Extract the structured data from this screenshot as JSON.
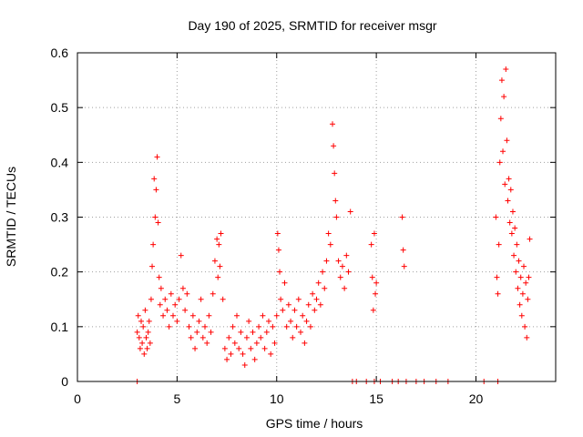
{
  "chart_data": {
    "type": "scatter",
    "title": "Day 190 of 2025, SRMTID for receiver msgr",
    "xlabel": "GPS time / hours",
    "ylabel": "SRMTID / TECUs",
    "xlim": [
      0,
      24
    ],
    "ylim": [
      0,
      0.6
    ],
    "xticks": [
      0,
      5,
      10,
      15,
      20
    ],
    "yticks": [
      0,
      0.1,
      0.2,
      0.3,
      0.4,
      0.5,
      0.6
    ],
    "xtick_labels": [
      "0",
      "5",
      "10",
      "15",
      "20"
    ],
    "ytick_labels": [
      "0",
      "0.1",
      "0.2",
      "0.3",
      "0.4",
      "0.5",
      "0.6"
    ],
    "grid": true,
    "marker": "+",
    "series": [
      {
        "name": "SRMTID",
        "color": "#ff0000",
        "points": [
          [
            3.0,
            0.09
          ],
          [
            3.05,
            0.12
          ],
          [
            3.1,
            0.08
          ],
          [
            3.15,
            0.06
          ],
          [
            3.2,
            0.11
          ],
          [
            3.25,
            0.07
          ],
          [
            3.3,
            0.1
          ],
          [
            3.35,
            0.05
          ],
          [
            3.4,
            0.13
          ],
          [
            3.45,
            0.08
          ],
          [
            3.5,
            0.06
          ],
          [
            3.55,
            0.09
          ],
          [
            3.6,
            0.11
          ],
          [
            3.65,
            0.07
          ],
          [
            3.7,
            0.15
          ],
          [
            3.75,
            0.21
          ],
          [
            3.8,
            0.25
          ],
          [
            3.85,
            0.37
          ],
          [
            3.9,
            0.3
          ],
          [
            3.95,
            0.35
          ],
          [
            4.0,
            0.41
          ],
          [
            4.05,
            0.29
          ],
          [
            4.1,
            0.19
          ],
          [
            4.15,
            0.14
          ],
          [
            4.2,
            0.17
          ],
          [
            4.3,
            0.12
          ],
          [
            4.4,
            0.15
          ],
          [
            4.5,
            0.13
          ],
          [
            4.6,
            0.1
          ],
          [
            4.7,
            0.16
          ],
          [
            4.8,
            0.12
          ],
          [
            4.9,
            0.14
          ],
          [
            5.0,
            0.11
          ],
          [
            5.1,
            0.15
          ],
          [
            5.2,
            0.23
          ],
          [
            5.3,
            0.17
          ],
          [
            5.4,
            0.13
          ],
          [
            5.5,
            0.16
          ],
          [
            5.6,
            0.1
          ],
          [
            5.7,
            0.08
          ],
          [
            5.8,
            0.12
          ],
          [
            5.9,
            0.06
          ],
          [
            6.0,
            0.09
          ],
          [
            6.1,
            0.11
          ],
          [
            6.2,
            0.15
          ],
          [
            6.3,
            0.08
          ],
          [
            6.4,
            0.1
          ],
          [
            6.5,
            0.07
          ],
          [
            6.6,
            0.12
          ],
          [
            6.7,
            0.09
          ],
          [
            6.8,
            0.16
          ],
          [
            6.9,
            0.22
          ],
          [
            7.0,
            0.26
          ],
          [
            7.05,
            0.19
          ],
          [
            7.1,
            0.25
          ],
          [
            7.15,
            0.21
          ],
          [
            7.2,
            0.27
          ],
          [
            7.3,
            0.15
          ],
          [
            7.4,
            0.06
          ],
          [
            7.5,
            0.04
          ],
          [
            7.6,
            0.08
          ],
          [
            7.7,
            0.05
          ],
          [
            7.8,
            0.1
          ],
          [
            7.9,
            0.07
          ],
          [
            8.0,
            0.12
          ],
          [
            8.1,
            0.06
          ],
          [
            8.2,
            0.09
          ],
          [
            8.3,
            0.05
          ],
          [
            8.4,
            0.03
          ],
          [
            8.5,
            0.08
          ],
          [
            8.6,
            0.11
          ],
          [
            8.7,
            0.06
          ],
          [
            8.8,
            0.09
          ],
          [
            8.9,
            0.04
          ],
          [
            9.0,
            0.07
          ],
          [
            9.1,
            0.1
          ],
          [
            9.2,
            0.08
          ],
          [
            9.3,
            0.12
          ],
          [
            9.4,
            0.06
          ],
          [
            9.5,
            0.09
          ],
          [
            9.6,
            0.11
          ],
          [
            9.7,
            0.05
          ],
          [
            9.8,
            0.1
          ],
          [
            9.9,
            0.07
          ],
          [
            10.0,
            0.12
          ],
          [
            10.05,
            0.27
          ],
          [
            10.1,
            0.24
          ],
          [
            10.15,
            0.2
          ],
          [
            10.2,
            0.15
          ],
          [
            10.3,
            0.13
          ],
          [
            10.4,
            0.18
          ],
          [
            10.5,
            0.1
          ],
          [
            10.6,
            0.14
          ],
          [
            10.7,
            0.11
          ],
          [
            10.8,
            0.08
          ],
          [
            10.9,
            0.13
          ],
          [
            11.0,
            0.1
          ],
          [
            11.1,
            0.15
          ],
          [
            11.2,
            0.09
          ],
          [
            11.3,
            0.12
          ],
          [
            11.4,
            0.07
          ],
          [
            11.5,
            0.11
          ],
          [
            11.6,
            0.14
          ],
          [
            11.7,
            0.1
          ],
          [
            11.8,
            0.16
          ],
          [
            11.9,
            0.13
          ],
          [
            12.0,
            0.15
          ],
          [
            12.1,
            0.18
          ],
          [
            12.2,
            0.14
          ],
          [
            12.3,
            0.2
          ],
          [
            12.4,
            0.17
          ],
          [
            12.5,
            0.22
          ],
          [
            12.6,
            0.27
          ],
          [
            12.7,
            0.25
          ],
          [
            12.8,
            0.47
          ],
          [
            12.85,
            0.43
          ],
          [
            12.9,
            0.38
          ],
          [
            12.95,
            0.33
          ],
          [
            13.0,
            0.3
          ],
          [
            13.1,
            0.22
          ],
          [
            13.2,
            0.19
          ],
          [
            13.3,
            0.21
          ],
          [
            13.4,
            0.17
          ],
          [
            13.5,
            0.23
          ],
          [
            13.6,
            0.2
          ],
          [
            13.7,
            0.31
          ],
          [
            14.75,
            0.25
          ],
          [
            14.8,
            0.19
          ],
          [
            14.85,
            0.13
          ],
          [
            14.9,
            0.27
          ],
          [
            14.95,
            0.16
          ],
          [
            15.0,
            0.18
          ],
          [
            16.3,
            0.3
          ],
          [
            16.35,
            0.24
          ],
          [
            16.4,
            0.21
          ],
          [
            21.0,
            0.3
          ],
          [
            21.05,
            0.19
          ],
          [
            21.1,
            0.16
          ],
          [
            21.15,
            0.25
          ],
          [
            21.2,
            0.4
          ],
          [
            21.25,
            0.48
          ],
          [
            21.3,
            0.55
          ],
          [
            21.35,
            0.42
          ],
          [
            21.4,
            0.52
          ],
          [
            21.45,
            0.36
          ],
          [
            21.5,
            0.57
          ],
          [
            21.55,
            0.44
          ],
          [
            21.6,
            0.33
          ],
          [
            21.65,
            0.37
          ],
          [
            21.7,
            0.29
          ],
          [
            21.75,
            0.35
          ],
          [
            21.8,
            0.27
          ],
          [
            21.85,
            0.31
          ],
          [
            21.9,
            0.23
          ],
          [
            21.95,
            0.28
          ],
          [
            22.0,
            0.2
          ],
          [
            22.05,
            0.25
          ],
          [
            22.1,
            0.17
          ],
          [
            22.15,
            0.22
          ],
          [
            22.2,
            0.14
          ],
          [
            22.25,
            0.19
          ],
          [
            22.3,
            0.12
          ],
          [
            22.35,
            0.16
          ],
          [
            22.4,
            0.21
          ],
          [
            22.45,
            0.1
          ],
          [
            22.5,
            0.18
          ],
          [
            22.55,
            0.08
          ],
          [
            22.6,
            0.15
          ],
          [
            22.65,
            0.19
          ],
          [
            22.7,
            0.26
          ],
          [
            3.0,
            0.0
          ],
          [
            13.8,
            0.0
          ],
          [
            14.0,
            0.0
          ],
          [
            14.5,
            0.0
          ],
          [
            14.9,
            0.0
          ],
          [
            15.2,
            0.0
          ],
          [
            15.8,
            0.0
          ],
          [
            16.1,
            0.0
          ],
          [
            16.5,
            0.0
          ],
          [
            17.0,
            0.0
          ],
          [
            17.4,
            0.0
          ],
          [
            18.0,
            0.0
          ],
          [
            18.6,
            0.0
          ],
          [
            20.4,
            0.0
          ],
          [
            21.1,
            0.0
          ]
        ]
      }
    ]
  }
}
